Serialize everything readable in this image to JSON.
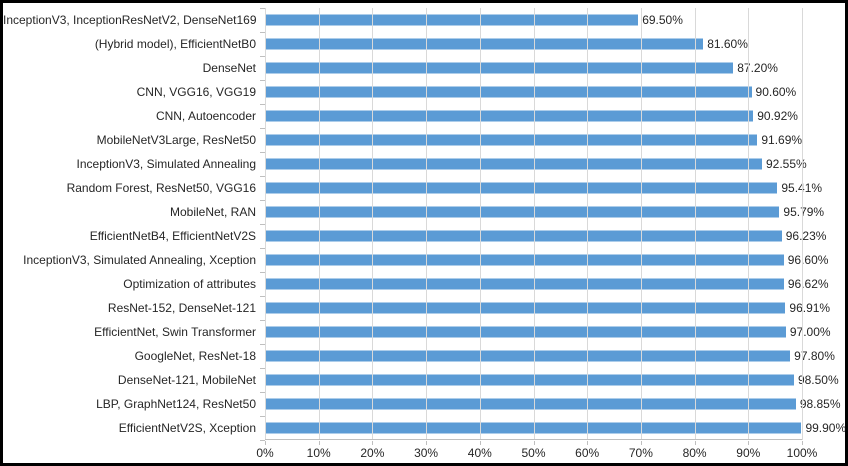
{
  "chart_data": {
    "type": "bar",
    "orientation": "horizontal",
    "title": "",
    "xlabel": "",
    "ylabel": "",
    "xlim": [
      0,
      100
    ],
    "grid": true,
    "legend": "none",
    "bar_color": "#5B9BD5",
    "gridline_color": "#D9D9D9",
    "axis_color": "#BFBFBF",
    "text_color": "#262626",
    "frame_border_color": "#000000",
    "x_ticks": [
      "0%",
      "10%",
      "20%",
      "30%",
      "40%",
      "50%",
      "60%",
      "70%",
      "80%",
      "90%",
      "100%"
    ],
    "categories": [
      "InceptionV3, InceptionResNetV2, DenseNet169",
      "(Hybrid model), EfficientNetB0",
      "DenseNet",
      "CNN, VGG16, VGG19",
      "CNN, Autoencoder",
      "MobileNetV3Large, ResNet50",
      "InceptionV3, Simulated Annealing",
      "Random Forest, ResNet50, VGG16",
      "MobileNet, RAN",
      "EfficientNetB4, EfficientNetV2S",
      "InceptionV3, Simulated Annealing, Xception",
      "Optimization of attributes",
      "ResNet-152, DenseNet-121",
      "EfficientNet, Swin Transformer",
      "GoogleNet, ResNet-18",
      "DenseNet-121, MobileNet",
      "LBP, GraphNet124, ResNet50",
      "EfficientNetV2S, Xception"
    ],
    "values": [
      69.5,
      81.6,
      87.2,
      90.6,
      90.92,
      91.69,
      92.55,
      95.41,
      95.79,
      96.23,
      96.6,
      96.62,
      96.91,
      97.0,
      97.8,
      98.5,
      98.85,
      99.9
    ],
    "value_labels": [
      "69.50%",
      "81.60%",
      "87.20%",
      "90.60%",
      "90.92%",
      "91.69%",
      "92.55%",
      "95.41%",
      "95.79%",
      "96.23%",
      "96.60%",
      "96.62%",
      "96.91%",
      "97.00%",
      "97.80%",
      "98.50%",
      "98.85%",
      "99.90%"
    ]
  }
}
